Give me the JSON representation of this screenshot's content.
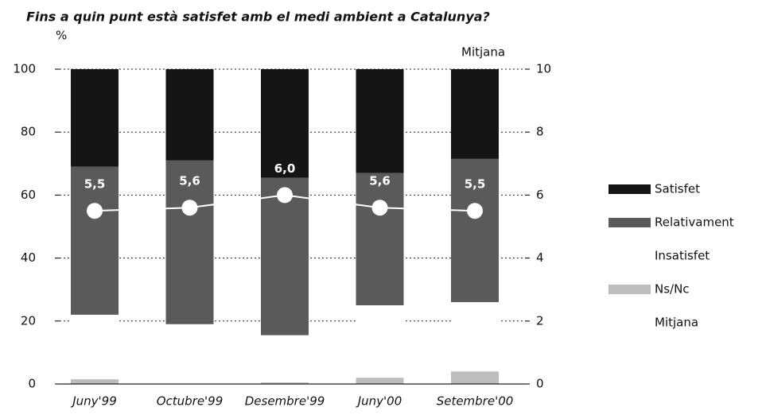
{
  "chart_data": {
    "type": "bar",
    "stacked": true,
    "title": "Fins a quin punt està satisfet amb el medi ambient a Catalunya?",
    "ylabel": "%",
    "y2label": "Mitjana",
    "categories": [
      "Juny'99",
      "Octubre'99",
      "Desembre'99",
      "Juny'00",
      "Setembre'00"
    ],
    "series": [
      {
        "name": "Ns/Nc",
        "color": "#bdbdbd",
        "values": [
          1.5,
          0,
          0.5,
          2,
          4
        ]
      },
      {
        "name": "Insatisfet",
        "color": "#ffffff",
        "values": [
          20.5,
          19,
          15,
          23,
          22
        ]
      },
      {
        "name": "Relativament",
        "color": "#5a5a5a",
        "values": [
          47,
          52,
          50,
          42,
          45.5
        ]
      },
      {
        "name": "Satisfet",
        "color": "#151515",
        "values": [
          31,
          29,
          34.5,
          33,
          28.5
        ]
      },
      {
        "name": "Mitjana",
        "color": "#ffffff",
        "type": "line",
        "axis": "y2",
        "values": [
          5.5,
          5.6,
          6.0,
          5.6,
          5.5
        ],
        "value_labels": [
          "5,5",
          "5,6",
          "6,0",
          "5,6",
          "5,5"
        ]
      }
    ],
    "legend_order": [
      3,
      2,
      1,
      0,
      4
    ],
    "ylim": [
      0,
      100
    ],
    "yticks": [
      0,
      20,
      40,
      60,
      80,
      100
    ],
    "y2lim": [
      0,
      10
    ],
    "y2ticks": [
      0,
      2,
      4,
      6,
      8,
      10
    ],
    "grid": true,
    "legend": "right"
  }
}
